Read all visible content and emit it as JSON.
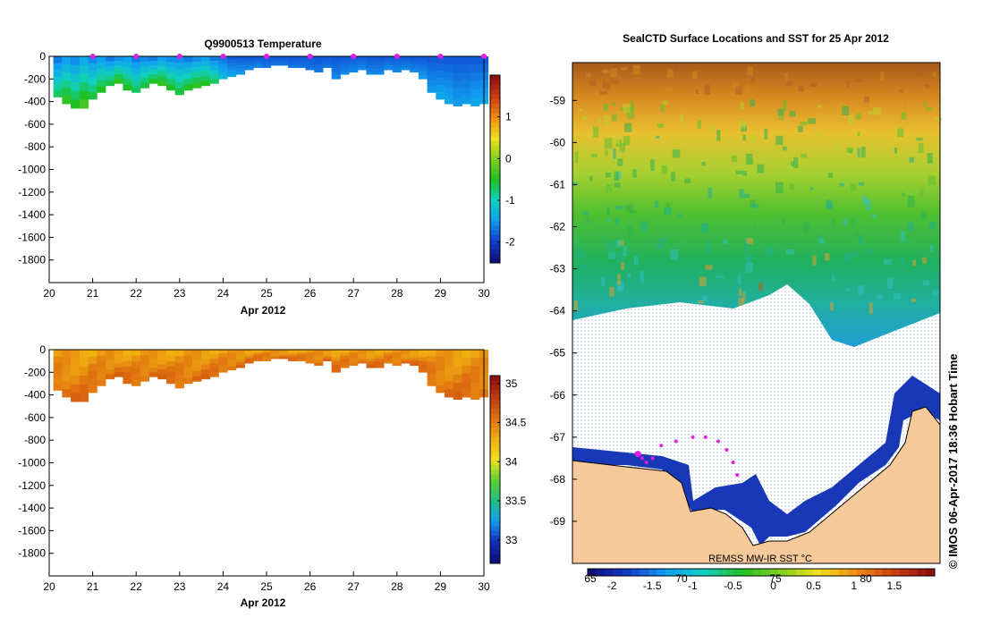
{
  "colors": {
    "land": "#f6c99a",
    "ice_dot": "#9fb7d4",
    "track": "#e020e0",
    "temperature_scale": [
      "#10107a",
      "#1040d0",
      "#10a0f0",
      "#10d0c0",
      "#20c020",
      "#80d020",
      "#f0e020",
      "#f09010",
      "#d04010",
      "#901010"
    ],
    "salinity_scale": [
      "#10107a",
      "#1030c0",
      "#10a0f0",
      "#20c080",
      "#60d030",
      "#f0e020",
      "#f0b010",
      "#e07010",
      "#c04010",
      "#901010"
    ]
  },
  "chart_data": [
    {
      "type": "heatmap",
      "title": "Q9900513  Temperature",
      "xlabel": "Apr 2012",
      "ylabel": "",
      "x_ticks": [
        "20",
        "21",
        "22",
        "23",
        "24",
        "25",
        "26",
        "27",
        "28",
        "29",
        "30"
      ],
      "y_ticks": [
        "0",
        "-200",
        "-400",
        "-600",
        "-800",
        "-1000",
        "-1200",
        "-1400",
        "-1600",
        "-1800"
      ],
      "xlim": [
        20,
        30
      ],
      "ylim": [
        -2000,
        0
      ],
      "colorbar": {
        "ticks": [
          "1",
          "0",
          "-1",
          "-2"
        ],
        "range": [
          -2.5,
          2.0
        ]
      },
      "profiles": [
        {
          "day": 20.2,
          "max_depth": -360,
          "surface": -1.8,
          "deep": -0.6
        },
        {
          "day": 20.4,
          "max_depth": -420,
          "surface": -1.6,
          "deep": -0.3
        },
        {
          "day": 20.6,
          "max_depth": -460,
          "surface": -1.7,
          "deep": -0.4
        },
        {
          "day": 20.8,
          "max_depth": -460,
          "surface": -1.5,
          "deep": -0.2
        },
        {
          "day": 21.0,
          "max_depth": -380,
          "surface": -1.7,
          "deep": -0.5
        },
        {
          "day": 21.2,
          "max_depth": -320,
          "surface": -1.6,
          "deep": -0.4
        },
        {
          "day": 21.4,
          "max_depth": -260,
          "surface": -1.8,
          "deep": -0.5
        },
        {
          "day": 21.6,
          "max_depth": -240,
          "surface": -1.7,
          "deep": -0.3
        },
        {
          "day": 21.8,
          "max_depth": -300,
          "surface": -1.6,
          "deep": -0.4
        },
        {
          "day": 22.0,
          "max_depth": -320,
          "surface": -1.8,
          "deep": -0.6
        },
        {
          "day": 22.2,
          "max_depth": -280,
          "surface": -1.7,
          "deep": -0.5
        },
        {
          "day": 22.4,
          "max_depth": -240,
          "surface": -1.8,
          "deep": -0.4
        },
        {
          "day": 22.6,
          "max_depth": -260,
          "surface": -1.6,
          "deep": -0.3
        },
        {
          "day": 22.8,
          "max_depth": -300,
          "surface": -1.7,
          "deep": -0.4
        },
        {
          "day": 23.0,
          "max_depth": -340,
          "surface": -1.7,
          "deep": -0.5
        },
        {
          "day": 23.2,
          "max_depth": -300,
          "surface": -1.8,
          "deep": -0.4
        },
        {
          "day": 23.4,
          "max_depth": -280,
          "surface": -1.7,
          "deep": -0.3
        },
        {
          "day": 23.6,
          "max_depth": -260,
          "surface": -1.6,
          "deep": -0.4
        },
        {
          "day": 23.8,
          "max_depth": -240,
          "surface": -1.8,
          "deep": -0.6
        },
        {
          "day": 24.0,
          "max_depth": -200,
          "surface": -1.8,
          "deep": -1.2
        },
        {
          "day": 24.2,
          "max_depth": -180,
          "surface": -1.9,
          "deep": -1.4
        },
        {
          "day": 24.4,
          "max_depth": -160,
          "surface": -1.9,
          "deep": -1.5
        },
        {
          "day": 24.6,
          "max_depth": -120,
          "surface": -1.9,
          "deep": -1.6
        },
        {
          "day": 24.8,
          "max_depth": -100,
          "surface": -1.9,
          "deep": -1.6
        },
        {
          "day": 25.0,
          "max_depth": -100,
          "surface": -1.9,
          "deep": -1.7
        },
        {
          "day": 25.2,
          "max_depth": -80,
          "surface": -1.9,
          "deep": -1.7
        },
        {
          "day": 25.4,
          "max_depth": -80,
          "surface": -1.9,
          "deep": -1.7
        },
        {
          "day": 25.6,
          "max_depth": -100,
          "surface": -1.9,
          "deep": -1.7
        },
        {
          "day": 25.8,
          "max_depth": -100,
          "surface": -1.9,
          "deep": -1.7
        },
        {
          "day": 26.0,
          "max_depth": -120,
          "surface": -1.9,
          "deep": -1.7
        },
        {
          "day": 26.2,
          "max_depth": -140,
          "surface": -1.9,
          "deep": -1.7
        },
        {
          "day": 26.4,
          "max_depth": -100,
          "surface": -1.9,
          "deep": -1.7
        },
        {
          "day": 26.6,
          "max_depth": -200,
          "surface": -1.9,
          "deep": -1.6
        },
        {
          "day": 26.8,
          "max_depth": -160,
          "surface": -1.9,
          "deep": -1.6
        },
        {
          "day": 27.0,
          "max_depth": -140,
          "surface": -1.9,
          "deep": -1.6
        },
        {
          "day": 27.2,
          "max_depth": -120,
          "surface": -1.9,
          "deep": -1.6
        },
        {
          "day": 27.4,
          "max_depth": -160,
          "surface": -1.9,
          "deep": -1.6
        },
        {
          "day": 27.6,
          "max_depth": -160,
          "surface": -1.9,
          "deep": -1.6
        },
        {
          "day": 27.8,
          "max_depth": -120,
          "surface": -1.9,
          "deep": -1.6
        },
        {
          "day": 28.0,
          "max_depth": -140,
          "surface": -1.9,
          "deep": -1.6
        },
        {
          "day": 28.2,
          "max_depth": -120,
          "surface": -1.9,
          "deep": -1.6
        },
        {
          "day": 28.4,
          "max_depth": -140,
          "surface": -1.9,
          "deep": -1.6
        },
        {
          "day": 28.6,
          "max_depth": -200,
          "surface": -1.9,
          "deep": -1.5
        },
        {
          "day": 28.8,
          "max_depth": -320,
          "surface": -1.9,
          "deep": -1.5
        },
        {
          "day": 29.0,
          "max_depth": -380,
          "surface": -1.9,
          "deep": -1.4
        },
        {
          "day": 29.2,
          "max_depth": -420,
          "surface": -1.9,
          "deep": -1.4
        },
        {
          "day": 29.4,
          "max_depth": -440,
          "surface": -1.9,
          "deep": -1.5
        },
        {
          "day": 29.6,
          "max_depth": -420,
          "surface": -1.9,
          "deep": -1.5
        },
        {
          "day": 29.8,
          "max_depth": -440,
          "surface": -1.9,
          "deep": -1.4
        },
        {
          "day": 30.0,
          "max_depth": -420,
          "surface": -1.9,
          "deep": -1.4
        }
      ],
      "markers": [
        21,
        22,
        23,
        24,
        25,
        26,
        27,
        28,
        29,
        30
      ]
    },
    {
      "type": "heatmap",
      "title": "",
      "xlabel": "Apr 2012",
      "ylabel": "",
      "x_ticks": [
        "20",
        "21",
        "22",
        "23",
        "24",
        "25",
        "26",
        "27",
        "28",
        "29",
        "30"
      ],
      "y_ticks": [
        "0",
        "-200",
        "-400",
        "-600",
        "-800",
        "-1000",
        "-1200",
        "-1400",
        "-1600",
        "-1800"
      ],
      "xlim": [
        20,
        30
      ],
      "ylim": [
        -2000,
        0
      ],
      "colorbar": {
        "ticks": [
          "35",
          "34.5",
          "34",
          "33.5",
          "33"
        ],
        "range": [
          32.7,
          35.1
        ]
      },
      "profiles_ref": "same depths as temperature; values 34.0-34.7"
    },
    {
      "type": "heatmap",
      "title": "SealCTD Surface Locations and SST for 25 Apr 2012",
      "xlabel": "",
      "ylabel": "",
      "y_ticks": [
        "-59",
        "-60",
        "-61",
        "-62",
        "-63",
        "-64",
        "-65",
        "-66",
        "-67",
        "-68",
        "-69"
      ],
      "lon_labels": [
        "65",
        "70",
        "75",
        "80"
      ],
      "colorbar_label": "REMSS MW-IR SST °C",
      "colorbar": {
        "ticks": [
          "-2",
          "-1.5",
          "-1",
          "-0.5",
          "0",
          "0.5",
          "1",
          "1.5"
        ],
        "range": [
          -2.3,
          2.0
        ]
      },
      "side_label": "© IMOS 06-Apr-2017 18:36 Hobart Time",
      "track_points": [
        {
          "lon": 67.2,
          "lat": -67.4
        },
        {
          "lon": 67.4,
          "lat": -67.5
        },
        {
          "lon": 67.6,
          "lat": -67.6
        },
        {
          "lon": 67.9,
          "lat": -67.5
        },
        {
          "lon": 68.3,
          "lat": -67.2
        },
        {
          "lon": 69.0,
          "lat": -67.1
        },
        {
          "lon": 69.8,
          "lat": -67.0
        },
        {
          "lon": 70.4,
          "lat": -67.0
        },
        {
          "lon": 71.0,
          "lat": -67.1
        },
        {
          "lon": 71.4,
          "lat": -67.3
        },
        {
          "lon": 71.7,
          "lat": -67.6
        },
        {
          "lon": 71.9,
          "lat": -67.9
        }
      ]
    }
  ]
}
